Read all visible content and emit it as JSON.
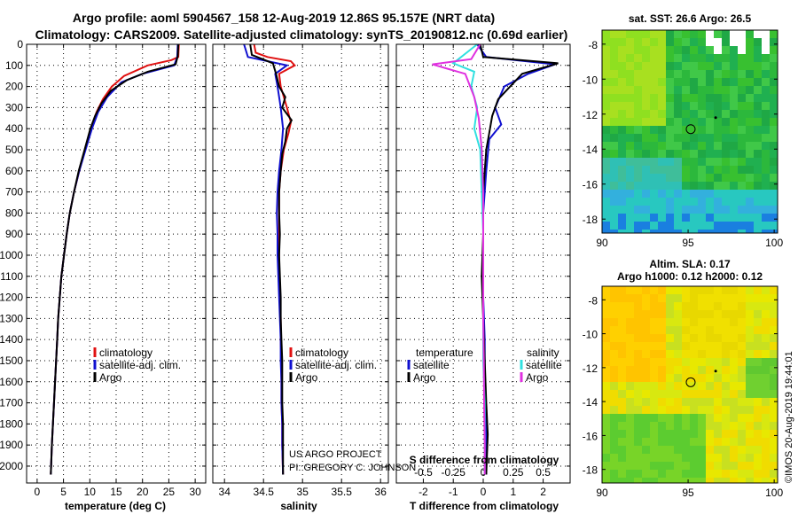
{
  "header": {
    "line1": "Argo profile: aoml 5904567_158 12-Aug-2019 12.86S 95.157E (NRT data)",
    "line2": "Climatology: CARS2009. Satellite-adjusted climatology: synTS_20190812.nc (0.69d earlier)"
  },
  "chart_data": [
    {
      "type": "line",
      "id": "temperature",
      "xlabel": "temperature (deg C)",
      "xlim": [
        -2,
        32
      ],
      "xticks": [
        0,
        5,
        10,
        15,
        20,
        25,
        30
      ],
      "ylim": [
        0,
        2080
      ],
      "yticks": [
        0,
        100,
        200,
        300,
        400,
        500,
        600,
        700,
        800,
        900,
        1000,
        1100,
        1200,
        1300,
        1400,
        1500,
        1600,
        1700,
        1800,
        1900,
        2000
      ],
      "legend": [
        "climatology",
        "satellite-adj. clim.",
        "Argo"
      ],
      "colors": {
        "climatology": "#e01010",
        "satellite": "#1010d0",
        "argo": "#000000"
      },
      "series": [
        {
          "name": "climatology",
          "color": "#e01010",
          "points": [
            [
              26.9,
              0
            ],
            [
              26.8,
              60
            ],
            [
              25.5,
              75
            ],
            [
              21,
              100
            ],
            [
              16.5,
              150
            ],
            [
              14.2,
              200
            ],
            [
              12.5,
              260
            ],
            [
              11.3,
              320
            ],
            [
              10.2,
              400
            ],
            [
              9.1,
              500
            ],
            [
              8.0,
              600
            ],
            [
              7.0,
              700
            ],
            [
              6.2,
              800
            ],
            [
              5.6,
              900
            ],
            [
              5.1,
              1000
            ],
            [
              4.6,
              1100
            ],
            [
              4.3,
              1200
            ],
            [
              4.0,
              1300
            ],
            [
              3.8,
              1400
            ],
            [
              3.6,
              1500
            ],
            [
              3.4,
              1600
            ],
            [
              3.2,
              1700
            ],
            [
              3.0,
              1800
            ],
            [
              2.8,
              1900
            ],
            [
              2.6,
              2040
            ]
          ]
        },
        {
          "name": "satellite-adj. clim.",
          "color": "#1010d0",
          "points": [
            [
              26.7,
              0
            ],
            [
              26.6,
              60
            ],
            [
              26.0,
              100
            ],
            [
              20,
              140
            ],
            [
              16,
              180
            ],
            [
              13.3,
              250
            ],
            [
              11.6,
              320
            ],
            [
              10.4,
              400
            ],
            [
              9.2,
              500
            ],
            [
              8.0,
              600
            ],
            [
              7.0,
              700
            ],
            [
              6.2,
              800
            ],
            [
              5.6,
              900
            ],
            [
              5.1,
              1000
            ],
            [
              4.6,
              1100
            ],
            [
              4.3,
              1200
            ],
            [
              4.0,
              1300
            ],
            [
              3.8,
              1400
            ],
            [
              3.6,
              1500
            ],
            [
              3.4,
              1600
            ],
            [
              3.2,
              1700
            ],
            [
              3.0,
              1800
            ],
            [
              2.8,
              1900
            ],
            [
              2.6,
              2040
            ]
          ]
        },
        {
          "name": "Argo",
          "color": "#000000",
          "points": [
            [
              26.8,
              0
            ],
            [
              26.7,
              55
            ],
            [
              26.3,
              95
            ],
            [
              21,
              130
            ],
            [
              17,
              170
            ],
            [
              14.0,
              220
            ],
            [
              12.2,
              280
            ],
            [
              11.0,
              340
            ],
            [
              10.1,
              400
            ],
            [
              9.0,
              500
            ],
            [
              7.9,
              600
            ],
            [
              7.0,
              700
            ],
            [
              6.2,
              800
            ],
            [
              5.6,
              900
            ],
            [
              5.1,
              1000
            ],
            [
              4.6,
              1100
            ],
            [
              4.3,
              1200
            ],
            [
              4.0,
              1300
            ],
            [
              3.8,
              1400
            ],
            [
              3.6,
              1500
            ],
            [
              3.4,
              1600
            ],
            [
              3.2,
              1700
            ],
            [
              3.0,
              1800
            ],
            [
              2.8,
              1900
            ],
            [
              2.6,
              2040
            ]
          ]
        }
      ]
    },
    {
      "type": "line",
      "id": "salinity",
      "xlabel": "salinity",
      "xlim": [
        33.85,
        36.1
      ],
      "xticks": [
        34,
        34.5,
        35,
        35.5,
        36
      ],
      "ylim": [
        0,
        2080
      ],
      "legend": [
        "climatology",
        "satellite-adj. clim.",
        "Argo"
      ],
      "series": [
        {
          "name": "climatology",
          "color": "#e01010",
          "points": [
            [
              34.38,
              0
            ],
            [
              34.4,
              40
            ],
            [
              34.55,
              60
            ],
            [
              34.85,
              80
            ],
            [
              34.9,
              100
            ],
            [
              34.7,
              140
            ],
            [
              34.72,
              200
            ],
            [
              34.8,
              300
            ],
            [
              34.85,
              370
            ],
            [
              34.82,
              420
            ],
            [
              34.76,
              500
            ],
            [
              34.72,
              600
            ],
            [
              34.7,
              700
            ],
            [
              34.7,
              800
            ],
            [
              34.7,
              900
            ],
            [
              34.7,
              1000
            ],
            [
              34.7,
              1100
            ],
            [
              34.71,
              1200
            ],
            [
              34.72,
              1300
            ],
            [
              34.72,
              1400
            ],
            [
              34.73,
              1500
            ],
            [
              34.73,
              1600
            ],
            [
              34.73,
              1700
            ],
            [
              34.74,
              1800
            ],
            [
              34.74,
              1900
            ],
            [
              34.75,
              2040
            ]
          ]
        },
        {
          "name": "satellite-adj. clim.",
          "color": "#1010d0",
          "points": [
            [
              34.25,
              0
            ],
            [
              34.3,
              60
            ],
            [
              34.55,
              80
            ],
            [
              34.8,
              100
            ],
            [
              34.65,
              140
            ],
            [
              34.68,
              200
            ],
            [
              34.72,
              300
            ],
            [
              34.75,
              400
            ],
            [
              34.73,
              500
            ],
            [
              34.7,
              600
            ],
            [
              34.68,
              700
            ],
            [
              34.67,
              800
            ],
            [
              34.68,
              900
            ],
            [
              34.68,
              1000
            ],
            [
              34.69,
              1100
            ],
            [
              34.7,
              1200
            ],
            [
              34.71,
              1300
            ],
            [
              34.72,
              1400
            ],
            [
              34.72,
              1500
            ],
            [
              34.73,
              1600
            ],
            [
              34.73,
              1700
            ],
            [
              34.74,
              1800
            ],
            [
              34.74,
              1900
            ],
            [
              34.75,
              2040
            ]
          ]
        },
        {
          "name": "Argo",
          "color": "#000000",
          "points": [
            [
              34.33,
              0
            ],
            [
              34.35,
              50
            ],
            [
              34.62,
              90
            ],
            [
              34.66,
              140
            ],
            [
              34.7,
              200
            ],
            [
              34.78,
              250
            ],
            [
              34.74,
              300
            ],
            [
              34.86,
              360
            ],
            [
              34.8,
              400
            ],
            [
              34.78,
              460
            ],
            [
              34.74,
              520
            ],
            [
              34.72,
              600
            ],
            [
              34.7,
              700
            ],
            [
              34.7,
              800
            ],
            [
              34.71,
              900
            ],
            [
              34.7,
              1000
            ],
            [
              34.71,
              1100
            ],
            [
              34.72,
              1200
            ],
            [
              34.72,
              1300
            ],
            [
              34.73,
              1400
            ],
            [
              34.74,
              1500
            ],
            [
              34.74,
              1600
            ],
            [
              34.74,
              1700
            ],
            [
              34.75,
              1800
            ],
            [
              34.75,
              1900
            ],
            [
              34.75,
              2040
            ]
          ]
        }
      ]
    },
    {
      "type": "line",
      "id": "difference",
      "xlabel": "T difference from climatology",
      "xlabel_top": "S difference from climatology",
      "xlim": [
        -2.9,
        2.9
      ],
      "xticks": [
        -2,
        -1,
        0,
        1,
        2
      ],
      "xticks_top": [
        "-0.5",
        "-0.25",
        "0",
        "0.25",
        "0.5"
      ],
      "ylim": [
        0,
        2080
      ],
      "legend_left_title": "temperature",
      "legend_right_title": "salinity",
      "legend": [
        "satellite",
        "Argo",
        "satellite",
        "Argo"
      ],
      "series": [
        {
          "name": "T satellite",
          "color": "#1010d0",
          "points": [
            [
              -0.2,
              0
            ],
            [
              0.1,
              60
            ],
            [
              2.4,
              95
            ],
            [
              1.5,
              140
            ],
            [
              0.7,
              200
            ],
            [
              0.4,
              300
            ],
            [
              0.6,
              380
            ],
            [
              0.2,
              450
            ],
            [
              0.1,
              600
            ],
            [
              0.0,
              800
            ],
            [
              0.0,
              1000
            ],
            [
              0.0,
              1200
            ],
            [
              0.05,
              1400
            ],
            [
              0.05,
              1600
            ],
            [
              0.1,
              1800
            ],
            [
              0.1,
              2040
            ]
          ]
        },
        {
          "name": "T Argo",
          "color": "#000000",
          "points": [
            [
              -0.1,
              0
            ],
            [
              0.0,
              60
            ],
            [
              2.5,
              90
            ],
            [
              1.3,
              140
            ],
            [
              0.9,
              200
            ],
            [
              0.5,
              260
            ],
            [
              0.3,
              340
            ],
            [
              0.2,
              420
            ],
            [
              0.1,
              500
            ],
            [
              0.0,
              700
            ],
            [
              0.0,
              900
            ],
            [
              -0.05,
              1100
            ],
            [
              0.0,
              1300
            ],
            [
              0.05,
              1500
            ],
            [
              0.1,
              1700
            ],
            [
              0.15,
              1850
            ],
            [
              0.1,
              2040
            ]
          ]
        },
        {
          "name": "S satellite",
          "color": "#30e0e0",
          "points": [
            [
              -0.2,
              0
            ],
            [
              -1.0,
              90
            ],
            [
              -0.3,
              130
            ],
            [
              -0.4,
              200
            ],
            [
              -0.2,
              300
            ],
            [
              -0.3,
              400
            ],
            [
              -0.1,
              500
            ],
            [
              -0.05,
              700
            ],
            [
              0.0,
              900
            ],
            [
              0.0,
              1100
            ],
            [
              0.0,
              1300
            ],
            [
              0.0,
              1500
            ],
            [
              0.05,
              1700
            ],
            [
              0.05,
              1900
            ],
            [
              0.05,
              2040
            ]
          ]
        },
        {
          "name": "S Argo",
          "color": "#e030e0",
          "points": [
            [
              -0.1,
              0
            ],
            [
              -0.4,
              70
            ],
            [
              -1.7,
              95
            ],
            [
              -0.6,
              140
            ],
            [
              -0.3,
              250
            ],
            [
              -0.15,
              350
            ],
            [
              -0.1,
              420
            ],
            [
              -0.05,
              500
            ],
            [
              0.0,
              700
            ],
            [
              0.0,
              900
            ],
            [
              0.0,
              1100
            ],
            [
              0.0,
              1300
            ],
            [
              0.02,
              1500
            ],
            [
              0.03,
              1700
            ],
            [
              0.05,
              1900
            ],
            [
              0.05,
              2040
            ]
          ]
        }
      ]
    },
    {
      "type": "heatmap",
      "id": "sst-map",
      "title": "sat. SST: 26.6 Argo: 26.5",
      "xticks": [
        "90",
        "95",
        "100"
      ],
      "yticks": [
        "-8",
        "-10",
        "-12",
        "-14",
        "-16",
        "-18"
      ],
      "xlim": [
        90,
        100.2
      ],
      "ylim": [
        -18.8,
        -7.2
      ],
      "marker_circle": [
        95.15,
        -12.86
      ],
      "marker_dot": [
        96.6,
        -12.2
      ]
    },
    {
      "type": "heatmap",
      "id": "sla-map",
      "title": "Altim. SLA: 0.17",
      "subtitle": "Argo h1000: 0.12 h2000: 0.12",
      "xticks": [
        "90",
        "95",
        "100"
      ],
      "yticks": [
        "-8",
        "-10",
        "-12",
        "-14",
        "-16",
        "-18"
      ],
      "xlim": [
        90,
        100.2
      ],
      "ylim": [
        -18.8,
        -7.2
      ],
      "marker_circle": [
        95.15,
        -12.86
      ],
      "marker_dot": [
        96.6,
        -12.2
      ]
    }
  ],
  "credits": {
    "project": "US ARGO PROJECT",
    "pi": "PI: GREGORY C. JOHNSON"
  },
  "watermark": "©IMOS 20-Aug-2019 19:44:01"
}
